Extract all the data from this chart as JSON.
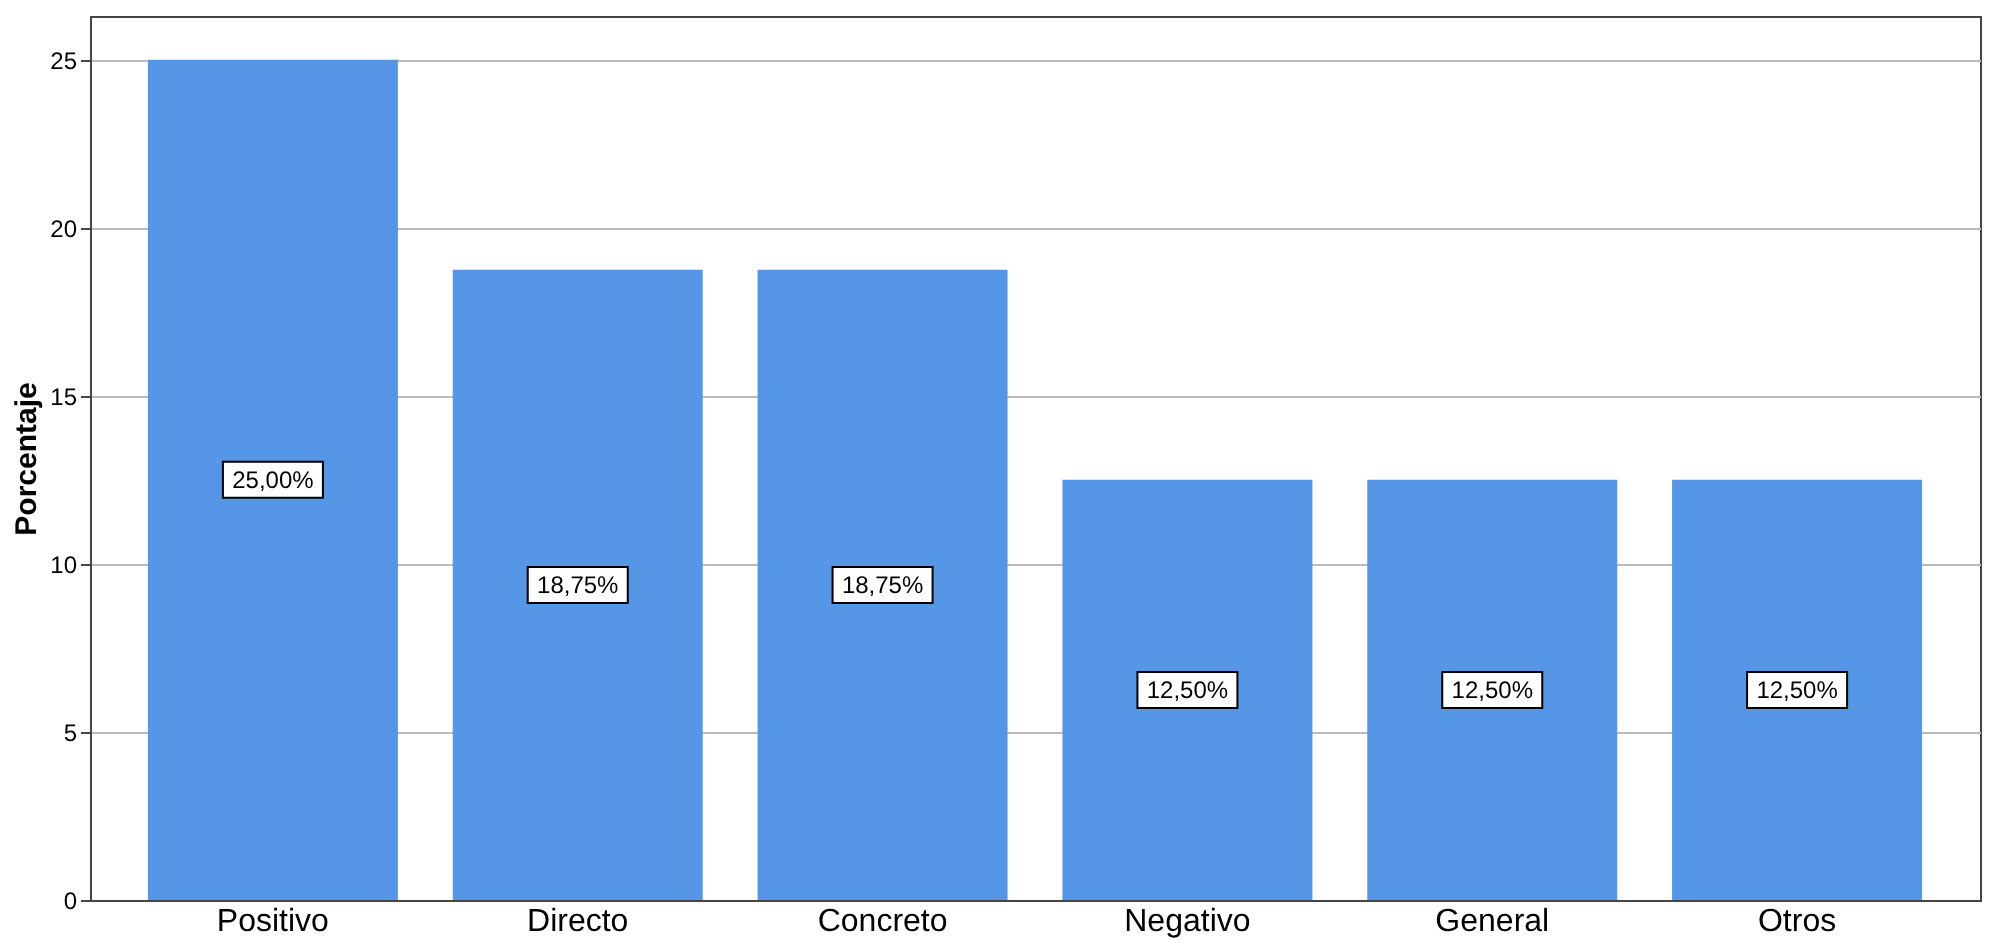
{
  "chart_data": {
    "type": "bar",
    "ylabel": "Porcentaje",
    "categories": [
      "Positivo",
      "Directo",
      "Concreto",
      "Negativo",
      "General",
      "Otros"
    ],
    "values": [
      25,
      18.75,
      18.75,
      12.5,
      12.5,
      12.5
    ],
    "value_labels": [
      "25,00%",
      "18,75%",
      "18,75%",
      "12,50%",
      "12,50%",
      "12,50%"
    ],
    "color": "#5596e6",
    "ylim": [
      0,
      26.3
    ],
    "yticks": [
      0,
      5,
      10,
      15,
      20,
      25
    ],
    "grid": "y"
  }
}
